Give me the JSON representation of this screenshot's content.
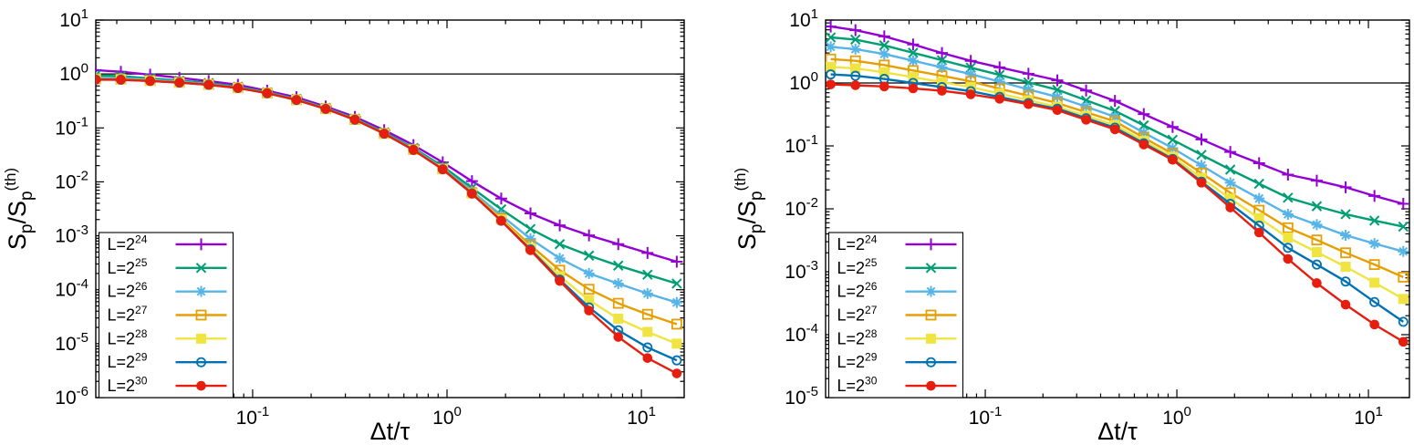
{
  "figure": {
    "background": "#ffffff",
    "axis_color": "#000000",
    "reference_line_value": 1
  },
  "chart_data": [
    {
      "type": "line",
      "panel": "left",
      "xlabel": "Δt/τ",
      "ylabel_plain": "S_p/S_p^(th)",
      "ylabel_parts": [
        {
          "t": "S",
          "style": "normal"
        },
        {
          "t": "p",
          "style": "sub"
        },
        {
          "t": "/S",
          "style": "normal"
        },
        {
          "t": "p",
          "style": "sub"
        },
        {
          "t": "(th)",
          "style": "sup"
        }
      ],
      "x_scale": "log",
      "y_scale": "log",
      "xlim": [
        0.0156,
        16.6
      ],
      "ylim": [
        1e-06,
        10
      ],
      "x_tick_exponents": [
        -1,
        0,
        1
      ],
      "y_tick_exponents": [
        1,
        0,
        -1,
        -2,
        -3,
        -4,
        -5,
        -6
      ],
      "grid": false,
      "reference_line_y": 1,
      "legend_position": "bottom-left",
      "x": [
        0.0156,
        0.021,
        0.0297,
        0.042,
        0.0594,
        0.084,
        0.1188,
        0.168,
        0.2376,
        0.336,
        0.4752,
        0.672,
        0.9503,
        1.3439,
        1.9006,
        2.6878,
        3.8012,
        5.3756,
        7.6025,
        10.7512,
        15.2049
      ],
      "series": [
        {
          "label": "L=2^24",
          "label_base": "L=2",
          "label_sup": "24",
          "color": "#9400d3",
          "marker": "plus",
          "values": [
            1.18,
            1.1,
            0.97,
            0.85,
            0.74,
            0.63,
            0.49,
            0.37,
            0.25,
            0.16,
            0.091,
            0.048,
            0.023,
            0.0103,
            0.0049,
            0.0026,
            0.00156,
            0.00102,
            0.0007,
            0.00048,
            0.00033
          ]
        },
        {
          "label": "L=2^25",
          "label_base": "L=2",
          "label_sup": "25",
          "color": "#009e73",
          "marker": "cross",
          "values": [
            0.95,
            0.91,
            0.83,
            0.75,
            0.68,
            0.58,
            0.46,
            0.345,
            0.235,
            0.149,
            0.083,
            0.0425,
            0.0194,
            0.0077,
            0.0031,
            0.00134,
            0.0007,
            0.00043,
            0.00028,
            0.00019,
            0.00013
          ]
        },
        {
          "label": "L=2^26",
          "label_base": "L=2",
          "label_sup": "26",
          "color": "#56b4e9",
          "marker": "asterisk",
          "values": [
            0.86,
            0.84,
            0.78,
            0.72,
            0.65,
            0.56,
            0.45,
            0.337,
            0.2295,
            0.145,
            0.08,
            0.0405,
            0.0181,
            0.0067,
            0.0024,
            0.00088,
            0.00038,
            0.0002,
            0.00013,
            8.5e-05,
            5.8e-05
          ]
        },
        {
          "label": "L=2^27",
          "label_base": "L=2",
          "label_sup": "27",
          "color": "#e69f00",
          "marker": "square-open",
          "values": [
            0.81,
            0.8,
            0.756,
            0.7,
            0.638,
            0.555,
            0.444,
            0.333,
            0.2268,
            0.1433,
            0.0789,
            0.0396,
            0.0174,
            0.0063,
            0.0021,
            0.00067,
            0.00023,
            0.000102,
            5.6e-05,
            3.5e-05,
            2.3e-05
          ]
        },
        {
          "label": "L=2^28",
          "label_base": "L=2",
          "label_sup": "28",
          "color": "#f0e442",
          "marker": "square-filled",
          "values": [
            0.8,
            0.79,
            0.747,
            0.695,
            0.633,
            0.552,
            0.4416,
            0.3311,
            0.2258,
            0.1426,
            0.0784,
            0.0393,
            0.0172,
            0.0061,
            0.002,
            0.00059,
            0.000178,
            6.4e-05,
            2.9e-05,
            1.65e-05,
            1e-05
          ]
        },
        {
          "label": "L=2^29",
          "label_base": "L=2",
          "label_sup": "29",
          "color": "#0072b2",
          "marker": "circle-open",
          "values": [
            0.79,
            0.784,
            0.743,
            0.692,
            0.6315,
            0.551,
            0.4407,
            0.3305,
            0.2253,
            0.1422,
            0.0782,
            0.0391,
            0.0171,
            0.0061,
            0.0019,
            0.00056,
            0.000154,
            4.7e-05,
            1.77e-05,
            8.5e-06,
            4.9e-06
          ]
        },
        {
          "label": "L=2^30",
          "label_base": "L=2",
          "label_sup": "30",
          "color": "#e51e10",
          "marker": "circle-filled",
          "values": [
            0.785,
            0.782,
            0.7416,
            0.6911,
            0.6308,
            0.5505,
            0.4404,
            0.3303,
            0.2252,
            0.1421,
            0.0781,
            0.039,
            0.017,
            0.006,
            0.0019,
            0.00054,
            0.000145,
            4.1e-05,
            1.33e-05,
            5.4e-06,
            2.8e-06
          ]
        }
      ]
    },
    {
      "type": "line",
      "panel": "right",
      "xlabel": "Δt/τ",
      "ylabel_plain": "S_p/S_p^(th)",
      "ylabel_parts": [
        {
          "t": "S",
          "style": "normal"
        },
        {
          "t": "p",
          "style": "sub"
        },
        {
          "t": "/S",
          "style": "normal"
        },
        {
          "t": "p",
          "style": "sub"
        },
        {
          "t": "(th)",
          "style": "sup"
        }
      ],
      "x_scale": "log",
      "y_scale": "log",
      "xlim": [
        0.01467,
        16.37
      ],
      "ylim": [
        1e-05,
        10
      ],
      "x_tick_exponents": [
        -1,
        0,
        1
      ],
      "y_tick_exponents": [
        1,
        0,
        -1,
        -2,
        -3,
        -4,
        -5
      ],
      "grid": false,
      "reference_line_y": 1,
      "legend_position": "bottom-left",
      "x": [
        0.0156,
        0.021,
        0.0297,
        0.042,
        0.0594,
        0.084,
        0.1188,
        0.168,
        0.2376,
        0.336,
        0.4752,
        0.672,
        0.9503,
        1.3439,
        1.9006,
        2.6878,
        3.8012,
        5.3756,
        7.6025,
        10.7512,
        15.2049
      ],
      "series": [
        {
          "label": "L=2^24",
          "label_base": "L=2",
          "label_sup": "24",
          "color": "#9400d3",
          "marker": "plus",
          "values": [
            7.9,
            6.9,
            5.5,
            4.1,
            3.0,
            2.25,
            1.77,
            1.4,
            1.1,
            0.76,
            0.52,
            0.32,
            0.2,
            0.127,
            0.08,
            0.053,
            0.035,
            0.028,
            0.022,
            0.016,
            0.012
          ]
        },
        {
          "label": "L=2^25",
          "label_base": "L=2",
          "label_sup": "25",
          "color": "#009e73",
          "marker": "cross",
          "values": [
            5.3,
            4.9,
            3.96,
            3.02,
            2.3,
            1.75,
            1.34,
            1.02,
            0.78,
            0.53,
            0.36,
            0.212,
            0.125,
            0.072,
            0.042,
            0.025,
            0.015,
            0.011,
            0.0082,
            0.0065,
            0.0052
          ]
        },
        {
          "label": "L=2^26",
          "label_base": "L=2",
          "label_sup": "26",
          "color": "#56b4e9",
          "marker": "asterisk",
          "values": [
            3.75,
            3.45,
            2.89,
            2.26,
            1.77,
            1.38,
            1.05,
            0.79,
            0.6,
            0.42,
            0.29,
            0.163,
            0.092,
            0.049,
            0.026,
            0.0146,
            0.0082,
            0.0056,
            0.0038,
            0.0028,
            0.0021
          ]
        },
        {
          "label": "L=2^27",
          "label_base": "L=2",
          "label_sup": "27",
          "color": "#e69f00",
          "marker": "square-open",
          "values": [
            2.4,
            2.25,
            1.93,
            1.58,
            1.3,
            1.06,
            0.81,
            0.625,
            0.48,
            0.343,
            0.245,
            0.135,
            0.075,
            0.037,
            0.018,
            0.0095,
            0.005,
            0.0032,
            0.002,
            0.0013,
            0.00082
          ]
        },
        {
          "label": "L=2^28",
          "label_base": "L=2",
          "label_sup": "28",
          "color": "#f0e442",
          "marker": "square-filled",
          "values": [
            1.8,
            1.71,
            1.48,
            1.24,
            1.03,
            0.86,
            0.68,
            0.53,
            0.42,
            0.3,
            0.215,
            0.12,
            0.067,
            0.031,
            0.0145,
            0.0071,
            0.0035,
            0.00205,
            0.0012,
            0.00067,
            0.00037
          ]
        },
        {
          "label": "L=2^29",
          "label_base": "L=2",
          "label_sup": "29",
          "color": "#0072b2",
          "marker": "circle-open",
          "values": [
            1.37,
            1.3,
            1.16,
            1.0,
            0.86,
            0.74,
            0.6,
            0.48,
            0.39,
            0.276,
            0.195,
            0.11,
            0.062,
            0.027,
            0.012,
            0.0054,
            0.0024,
            0.0013,
            0.0007,
            0.00033,
            0.00016
          ]
        },
        {
          "label": "L=2^30",
          "label_base": "L=2",
          "label_sup": "30",
          "color": "#e51e10",
          "marker": "circle-filled",
          "values": [
            0.95,
            0.92,
            0.88,
            0.82,
            0.75,
            0.66,
            0.56,
            0.46,
            0.37,
            0.26,
            0.183,
            0.105,
            0.06,
            0.026,
            0.0105,
            0.0042,
            0.0016,
            0.00066,
            0.0003,
            0.000145,
            7.7e-05
          ]
        }
      ]
    }
  ]
}
